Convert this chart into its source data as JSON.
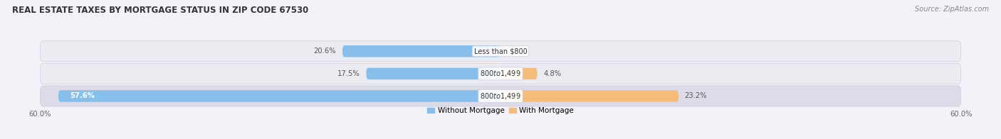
{
  "title": "REAL ESTATE TAXES BY MORTGAGE STATUS IN ZIP CODE 67530",
  "source": "Source: ZipAtlas.com",
  "rows": [
    {
      "label": "Less than $800",
      "without_mortgage": 20.6,
      "with_mortgage": 0.0
    },
    {
      "label": "$800 to $1,499",
      "without_mortgage": 17.5,
      "with_mortgage": 4.8
    },
    {
      "label": "$800 to $1,499",
      "without_mortgage": 57.6,
      "with_mortgage": 23.2
    }
  ],
  "max_val": 60.0,
  "color_without": "#85BFEA",
  "color_without_dark": "#4A90C4",
  "color_with": "#F5BC7A",
  "color_with_dark": "#E8952A",
  "bg_figure": "#F2F2F8",
  "bg_row_light": "#EBEBF2",
  "bg_row_dark": "#DCDCE8",
  "bg_row_inner": "#F7F7FA",
  "title_fontsize": 8.5,
  "label_fontsize": 7.2,
  "tick_fontsize": 7.2,
  "legend_fontsize": 7.5,
  "source_fontsize": 7
}
